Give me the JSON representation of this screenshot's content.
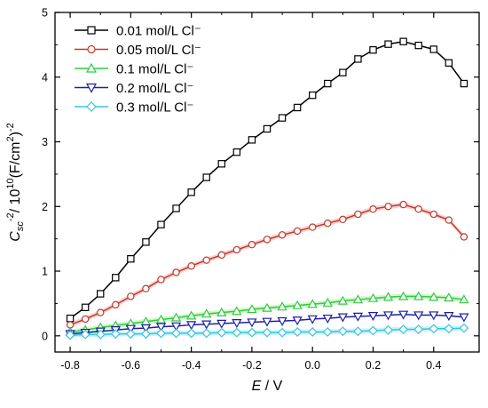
{
  "chart_data": {
    "type": "line",
    "title": "",
    "x_axis": {
      "label_main": "E",
      "label_rest": " / V",
      "range": [
        -0.85,
        0.55
      ],
      "ticks": [
        -0.8,
        -0.6,
        -0.4,
        -0.2,
        0.0,
        0.2,
        0.4
      ],
      "tick_labels": [
        "-0.8",
        "-0.6",
        "-0.4",
        "-0.2",
        "0.0",
        "0.2",
        "0.4"
      ]
    },
    "y_axis": {
      "label_base": "C",
      "label_sub": "sc",
      "label_sup1": "-2",
      "label_mid": "/ 10",
      "label_sup2": "10",
      "label_tail": "(F/cm",
      "label_sup3": "2",
      "label_close": ")",
      "label_sup4": "-2",
      "range": [
        -0.25,
        5.0
      ],
      "ticks": [
        0,
        1,
        2,
        3,
        4,
        5
      ],
      "tick_labels": [
        "0",
        "1",
        "2",
        "3",
        "4",
        "5"
      ]
    },
    "legend_position": "top-left",
    "x": [
      -0.8,
      -0.75,
      -0.7,
      -0.65,
      -0.6,
      -0.55,
      -0.5,
      -0.45,
      -0.4,
      -0.35,
      -0.3,
      -0.25,
      -0.2,
      -0.15,
      -0.1,
      -0.05,
      0.0,
      0.05,
      0.1,
      0.15,
      0.2,
      0.25,
      0.3,
      0.35,
      0.4,
      0.45,
      0.5
    ],
    "series": [
      {
        "name": "0.01 mol/L Cl⁻",
        "color": "#000000",
        "marker": "square",
        "band": false,
        "values": [
          0.27,
          0.44,
          0.65,
          0.9,
          1.19,
          1.45,
          1.72,
          1.97,
          2.22,
          2.45,
          2.66,
          2.84,
          3.03,
          3.2,
          3.37,
          3.53,
          3.72,
          3.9,
          4.07,
          4.28,
          4.42,
          4.51,
          4.55,
          4.49,
          4.43,
          4.22,
          3.9
        ]
      },
      {
        "name": "0.05 mol/L Cl⁻",
        "color": "#c0392b",
        "marker": "circle",
        "band": true,
        "band_color": "#f7d4d4",
        "values": [
          0.17,
          0.26,
          0.36,
          0.48,
          0.61,
          0.73,
          0.87,
          0.98,
          1.08,
          1.17,
          1.25,
          1.33,
          1.41,
          1.49,
          1.56,
          1.62,
          1.68,
          1.74,
          1.8,
          1.88,
          1.96,
          2.0,
          2.03,
          1.96,
          1.88,
          1.79,
          1.53
        ]
      },
      {
        "name": "0.1   mol/L Cl⁻",
        "color": "#2ecc40",
        "marker": "triangle-up",
        "band": true,
        "band_color": "#d6f5cf",
        "values": [
          0.06,
          0.09,
          0.13,
          0.16,
          0.19,
          0.22,
          0.25,
          0.28,
          0.31,
          0.34,
          0.36,
          0.38,
          0.41,
          0.43,
          0.45,
          0.47,
          0.49,
          0.51,
          0.54,
          0.56,
          0.58,
          0.6,
          0.61,
          0.61,
          0.6,
          0.59,
          0.56
        ]
      },
      {
        "name": "0.2   mol/L Cl⁻",
        "color": "#1f1fa8",
        "marker": "triangle-down",
        "band": false,
        "values": [
          0.03,
          0.05,
          0.07,
          0.09,
          0.11,
          0.12,
          0.14,
          0.15,
          0.17,
          0.18,
          0.19,
          0.2,
          0.21,
          0.22,
          0.23,
          0.24,
          0.26,
          0.27,
          0.29,
          0.3,
          0.31,
          0.32,
          0.33,
          0.32,
          0.32,
          0.31,
          0.29
        ]
      },
      {
        "name": "0.3   mol/L Cl⁻",
        "color": "#33c6e0",
        "marker": "diamond",
        "band": true,
        "band_color": "#cdf2f7",
        "values": [
          0.01,
          0.02,
          0.02,
          0.03,
          0.03,
          0.03,
          0.04,
          0.04,
          0.04,
          0.04,
          0.05,
          0.05,
          0.05,
          0.05,
          0.05,
          0.06,
          0.06,
          0.06,
          0.07,
          0.07,
          0.08,
          0.09,
          0.1,
          0.1,
          0.11,
          0.11,
          0.12
        ]
      }
    ]
  }
}
